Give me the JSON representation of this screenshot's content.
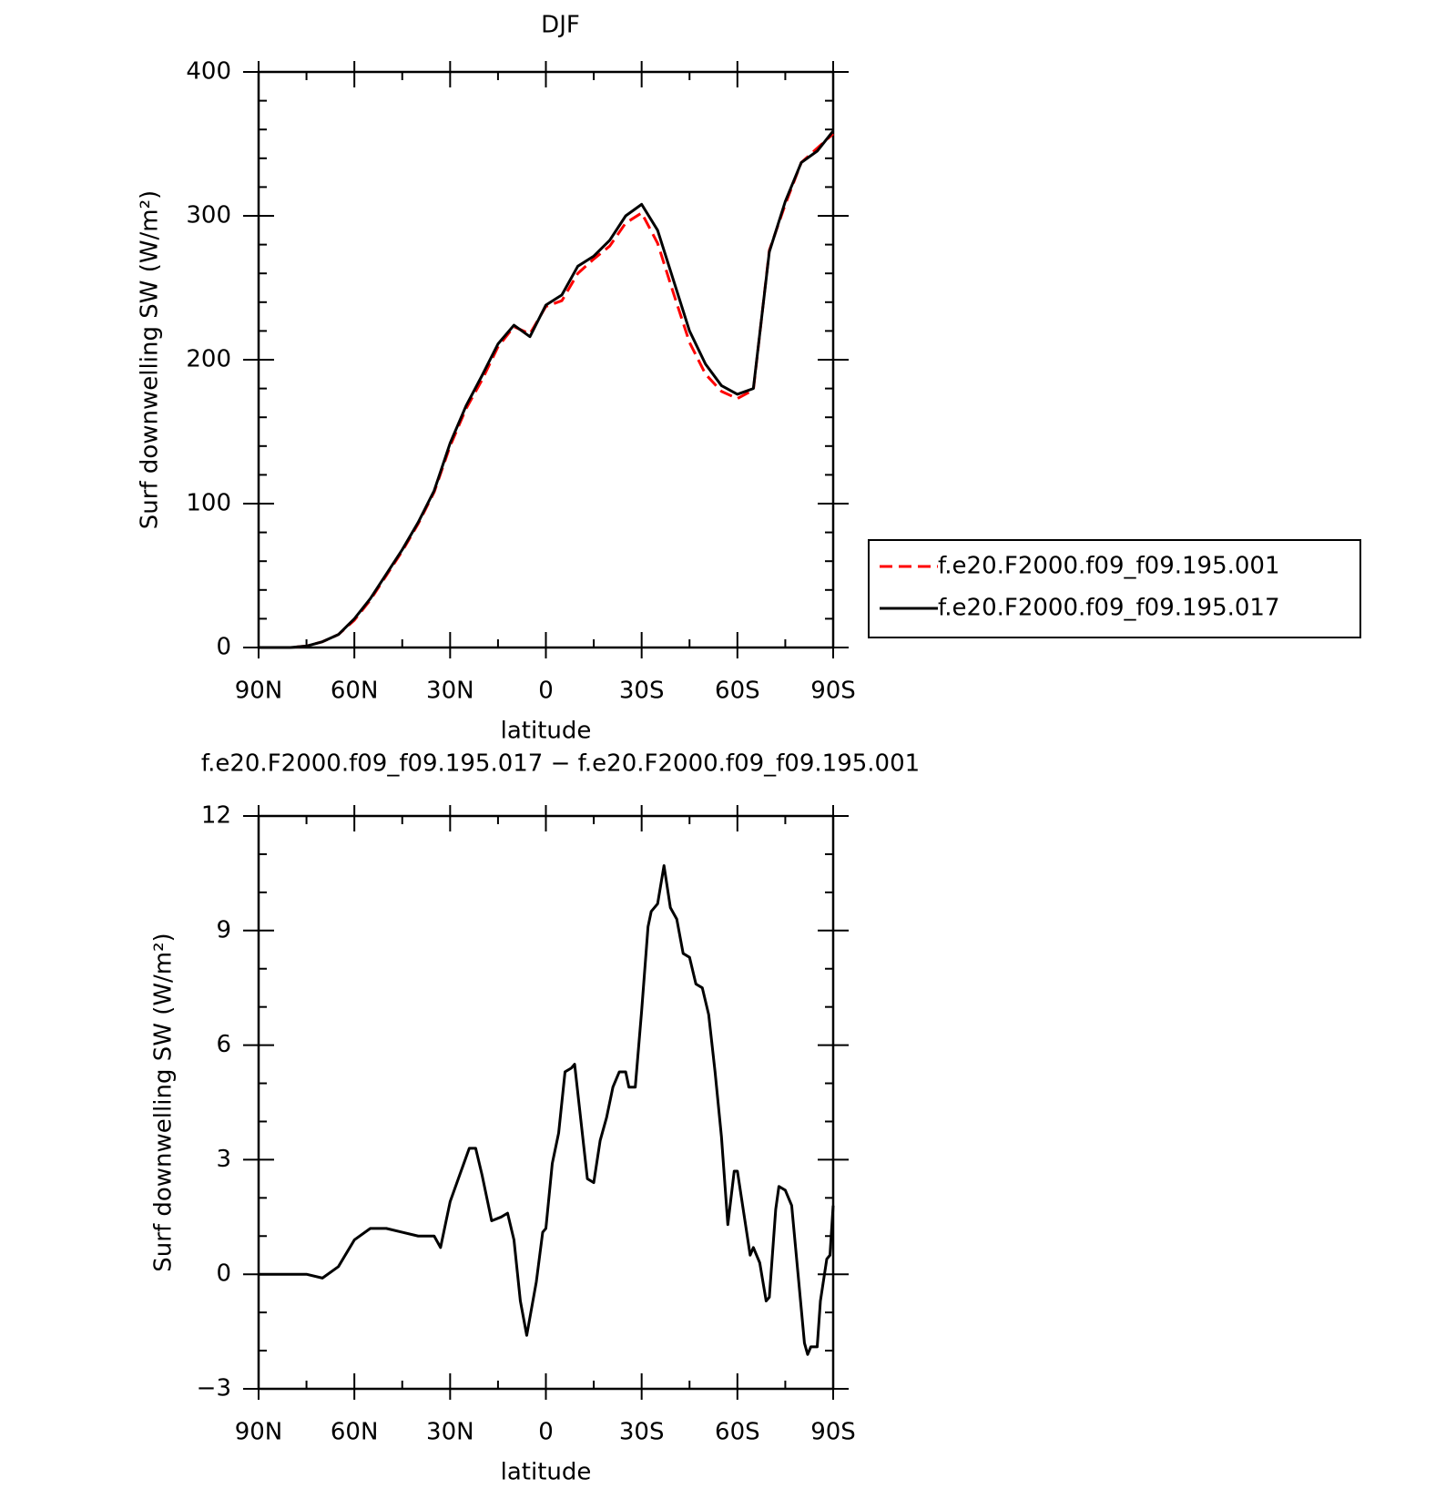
{
  "chart_data": [
    {
      "type": "line",
      "title": "DJF",
      "x": [
        90,
        85,
        80,
        75,
        70,
        65,
        60,
        55,
        50,
        45,
        40,
        35,
        30,
        25,
        20,
        15,
        10,
        5,
        0,
        -5,
        -10,
        -15,
        -20,
        -25,
        -30,
        -35,
        -40,
        -45,
        -50,
        -55,
        -60,
        -65,
        -70,
        -75,
        -80,
        -85,
        -90
      ],
      "series": [
        {
          "name": "f.e20.F2000.f09_f09.195.001",
          "color": "#ff0000",
          "dash": true,
          "values": [
            0,
            0,
            0,
            1,
            4,
            9,
            19,
            33,
            50,
            67,
            86,
            108,
            140,
            166,
            186,
            209,
            223,
            218,
            237,
            241,
            260,
            270,
            279,
            295,
            302,
            281,
            246,
            212,
            190,
            178,
            173,
            179,
            276,
            308,
            337,
            347,
            357
          ]
        },
        {
          "name": "f.e20.F2000.f09_f09.195.017",
          "color": "#000000",
          "dash": false,
          "values": [
            0,
            0,
            0,
            1,
            4,
            9,
            20,
            34,
            51,
            68,
            87,
            109,
            142,
            168,
            189,
            211,
            224,
            216,
            238,
            245,
            265,
            272,
            283,
            300,
            308,
            290,
            255,
            220,
            197,
            182,
            176,
            180,
            275,
            310,
            337,
            345,
            359
          ]
        }
      ],
      "xlim": [
        90,
        -90
      ],
      "xticks": [
        {
          "value": 90,
          "label": "90N"
        },
        {
          "value": 60,
          "label": "60N"
        },
        {
          "value": 30,
          "label": "30N"
        },
        0,
        {
          "value": -30,
          "label": "30S"
        },
        {
          "value": -60,
          "label": "60S"
        },
        {
          "value": -90,
          "label": "90S"
        }
      ],
      "xminor": [
        75,
        45,
        15,
        -15,
        -45,
        -75
      ],
      "ylim": [
        0,
        400
      ],
      "yticks": [
        0,
        100,
        200,
        300,
        400
      ],
      "yminor": [
        20,
        40,
        60,
        80,
        120,
        140,
        160,
        180,
        220,
        240,
        260,
        280,
        320,
        340,
        360,
        380
      ],
      "xlabel": "latitude",
      "ylabel": "Surf downwelling SW (W/m²)"
    },
    {
      "type": "line",
      "title": "f.e20.F2000.f09_f09.195.017 − f.e20.F2000.f09_f09.195.001",
      "x": [
        90,
        85,
        80,
        75,
        70,
        65,
        60,
        55,
        50,
        45,
        40,
        35,
        33,
        30,
        27,
        24,
        22,
        20,
        17,
        14,
        12,
        10,
        8,
        6,
        3,
        1,
        0,
        -2,
        -4,
        -6,
        -8,
        -9,
        -11,
        -13,
        -15,
        -17,
        -19,
        -21,
        -23,
        -25,
        -26,
        -28,
        -30,
        -32,
        -33,
        -35,
        -37,
        -39,
        -41,
        -43,
        -45,
        -47,
        -49,
        -51,
        -53,
        -55,
        -57,
        -59,
        -60,
        -62,
        -64,
        -65,
        -67,
        -69,
        -70,
        -72,
        -73,
        -75,
        -77,
        -79,
        -81,
        -82,
        -83,
        -85,
        -86,
        -88,
        -89,
        -90
      ],
      "color": "#000000",
      "values": [
        0,
        0,
        0,
        0,
        -0.1,
        0.2,
        0.9,
        1.2,
        1.2,
        1.1,
        1.0,
        1.0,
        0.7,
        1.9,
        2.6,
        3.3,
        3.3,
        2.6,
        1.4,
        1.5,
        1.6,
        0.9,
        -0.7,
        -1.6,
        -0.2,
        1.1,
        1.2,
        2.9,
        3.7,
        5.3,
        5.4,
        5.5,
        4.0,
        2.5,
        2.4,
        3.5,
        4.1,
        4.9,
        5.3,
        5.3,
        4.9,
        4.9,
        6.9,
        9.1,
        9.5,
        9.7,
        10.7,
        9.6,
        9.3,
        8.4,
        8.3,
        7.6,
        7.5,
        6.8,
        5.3,
        3.6,
        1.3,
        2.7,
        2.7,
        1.6,
        0.5,
        0.7,
        0.3,
        -0.7,
        -0.6,
        1.7,
        2.3,
        2.2,
        1.8,
        0.0,
        -1.8,
        -2.1,
        -1.9,
        -1.9,
        -0.7,
        0.4,
        0.5,
        1.8
      ],
      "xlim": [
        90,
        -90
      ],
      "xticks": [
        {
          "value": 90,
          "label": "90N"
        },
        {
          "value": 60,
          "label": "60N"
        },
        {
          "value": 30,
          "label": "30N"
        },
        0,
        {
          "value": -30,
          "label": "30S"
        },
        {
          "value": -60,
          "label": "60S"
        },
        {
          "value": -90,
          "label": "90S"
        }
      ],
      "xminor": [
        75,
        45,
        15,
        -15,
        -45,
        -75
      ],
      "ylim": [
        -3,
        12
      ],
      "yticks": [
        {
          "value": -3,
          "label": "−3"
        },
        0,
        3,
        6,
        9,
        12
      ],
      "yminor": [
        -2,
        -1,
        1,
        2,
        4,
        5,
        7,
        8,
        10,
        11
      ],
      "xlabel": "latitude",
      "ylabel": "Surf downwelling SW (W/m²)"
    }
  ]
}
